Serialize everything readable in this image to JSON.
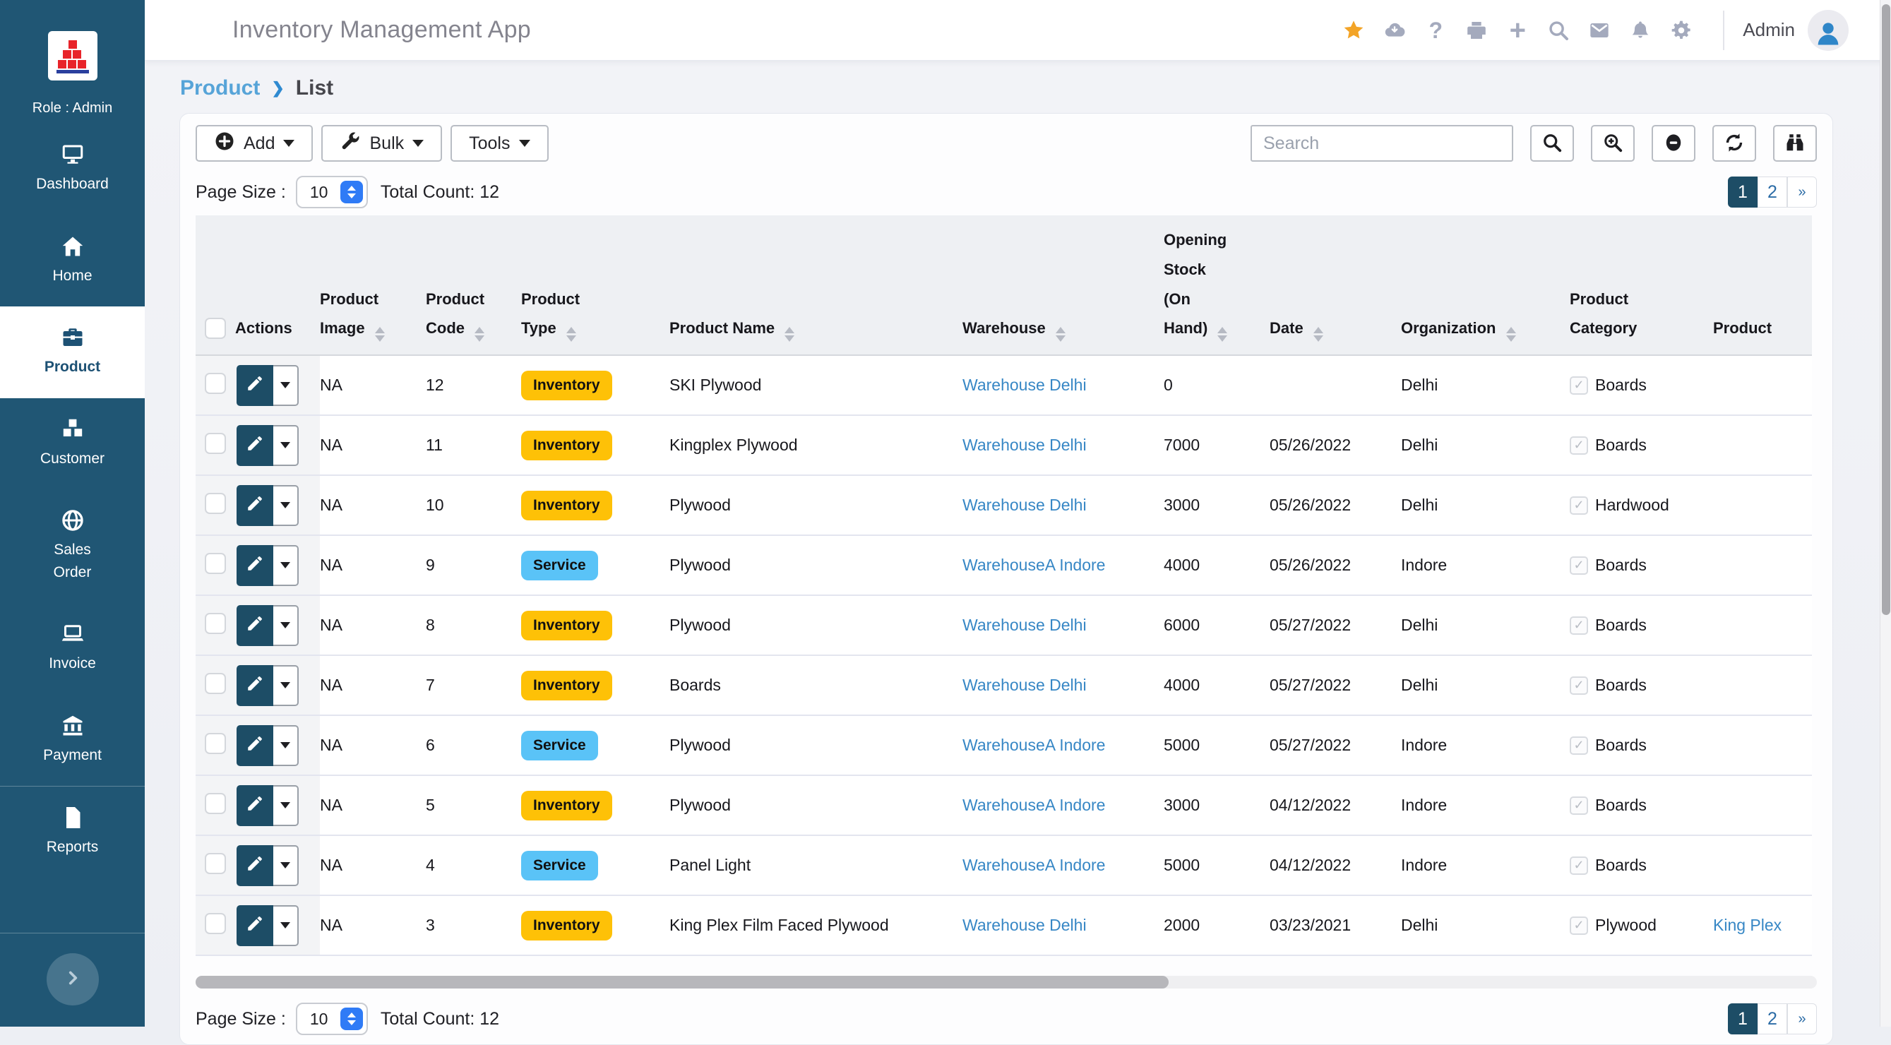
{
  "colors": {
    "sidebar_bg": "#205674",
    "accent": "#1d5174",
    "pagination_active": "#1d4d66",
    "badge_inventory": "#fec107",
    "badge_service": "#5ac3f7",
    "link": "#3787c5",
    "star": "#f3a427"
  },
  "sidebar": {
    "role_label": "Role : Admin",
    "items": [
      {
        "id": "dashboard",
        "label": "Dashboard",
        "icon": "monitor-icon",
        "active": false
      },
      {
        "id": "home",
        "label": "Home",
        "icon": "home-icon",
        "active": false
      },
      {
        "id": "product",
        "label": "Product",
        "icon": "briefcase-icon",
        "active": true
      },
      {
        "id": "customer",
        "label": "Customer",
        "icon": "cubes-icon",
        "active": false
      },
      {
        "id": "sales-order",
        "label": "Sales Order",
        "icon": "globe-icon",
        "active": false
      },
      {
        "id": "invoice",
        "label": "Invoice",
        "icon": "laptop-icon",
        "active": false
      },
      {
        "id": "payment",
        "label": "Payment",
        "icon": "bank-icon",
        "active": false
      },
      {
        "id": "reports",
        "label": "Reports",
        "icon": "file-icon",
        "active": false
      }
    ]
  },
  "header": {
    "title": "Inventory Management App",
    "user_label": "Admin",
    "icons": [
      "star",
      "cloud-download",
      "help",
      "print",
      "plus",
      "search",
      "mail",
      "bell",
      "gear"
    ]
  },
  "breadcrumb": {
    "section": "Product",
    "separator": "❯",
    "page": "List"
  },
  "toolbar": {
    "add_label": "Add",
    "bulk_label": "Bulk",
    "tools_label": "Tools",
    "search_placeholder": "Search"
  },
  "meta": {
    "page_size_label": "Page Size :",
    "page_size_value": "10",
    "total_count_label": "Total Count: 12"
  },
  "pagination": {
    "pages": [
      "1",
      "2"
    ],
    "active": "1",
    "more_label": "»"
  },
  "table": {
    "columns": [
      {
        "key": "select",
        "label": "",
        "sortable": false
      },
      {
        "key": "actions",
        "label": "Actions",
        "sortable": false
      },
      {
        "key": "product_image",
        "label": "Product Image",
        "sortable": true
      },
      {
        "key": "product_code",
        "label": "Product Code",
        "sortable": true
      },
      {
        "key": "product_type",
        "label": "Product Type",
        "sortable": true
      },
      {
        "key": "product_name",
        "label": "Product Name",
        "sortable": true
      },
      {
        "key": "warehouse",
        "label": "Warehouse",
        "sortable": true
      },
      {
        "key": "opening_stock",
        "label": "Opening Stock (On Hand)",
        "sortable": true
      },
      {
        "key": "date",
        "label": "Date",
        "sortable": true
      },
      {
        "key": "organization",
        "label": "Organization",
        "sortable": true
      },
      {
        "key": "product_category",
        "label": "Product Category",
        "sortable": false
      },
      {
        "key": "product",
        "label": "Product",
        "sortable": false
      }
    ],
    "rows": [
      {
        "image": "NA",
        "code": "12",
        "type": "Inventory",
        "name": "SKI Plywood",
        "warehouse": "Warehouse Delhi",
        "stock": "0",
        "date": "",
        "organization": "Delhi",
        "category": "Boards",
        "product": ""
      },
      {
        "image": "NA",
        "code": "11",
        "type": "Inventory",
        "name": "Kingplex Plywood",
        "warehouse": "Warehouse Delhi",
        "stock": "7000",
        "date": "05/26/2022",
        "organization": "Delhi",
        "category": "Boards",
        "product": ""
      },
      {
        "image": "NA",
        "code": "10",
        "type": "Inventory",
        "name": "Plywood",
        "warehouse": "Warehouse Delhi",
        "stock": "3000",
        "date": "05/26/2022",
        "organization": "Delhi",
        "category": "Hardwood",
        "product": ""
      },
      {
        "image": "NA",
        "code": "9",
        "type": "Service",
        "name": "Plywood",
        "warehouse": "WarehouseA Indore",
        "stock": "4000",
        "date": "05/26/2022",
        "organization": "Indore",
        "category": "Boards",
        "product": ""
      },
      {
        "image": "NA",
        "code": "8",
        "type": "Inventory",
        "name": "Plywood",
        "warehouse": "Warehouse Delhi",
        "stock": "6000",
        "date": "05/27/2022",
        "organization": "Delhi",
        "category": "Boards",
        "product": ""
      },
      {
        "image": "NA",
        "code": "7",
        "type": "Inventory",
        "name": "Boards",
        "warehouse": "Warehouse Delhi",
        "stock": "4000",
        "date": "05/27/2022",
        "organization": "Delhi",
        "category": "Boards",
        "product": ""
      },
      {
        "image": "NA",
        "code": "6",
        "type": "Service",
        "name": "Plywood",
        "warehouse": "WarehouseA Indore",
        "stock": "5000",
        "date": "05/27/2022",
        "organization": "Indore",
        "category": "Boards",
        "product": ""
      },
      {
        "image": "NA",
        "code": "5",
        "type": "Inventory",
        "name": "Plywood",
        "warehouse": "WarehouseA Indore",
        "stock": "3000",
        "date": "04/12/2022",
        "organization": "Indore",
        "category": "Boards",
        "product": ""
      },
      {
        "image": "NA",
        "code": "4",
        "type": "Service",
        "name": "Panel Light",
        "warehouse": "WarehouseA Indore",
        "stock": "5000",
        "date": "04/12/2022",
        "organization": "Indore",
        "category": "Boards",
        "product": ""
      },
      {
        "image": "NA",
        "code": "3",
        "type": "Inventory",
        "name": "King Plex Film Faced Plywood",
        "warehouse": "Warehouse Delhi",
        "stock": "2000",
        "date": "03/23/2021",
        "organization": "Delhi",
        "category": "Plywood",
        "product": "King Plex"
      }
    ]
  }
}
